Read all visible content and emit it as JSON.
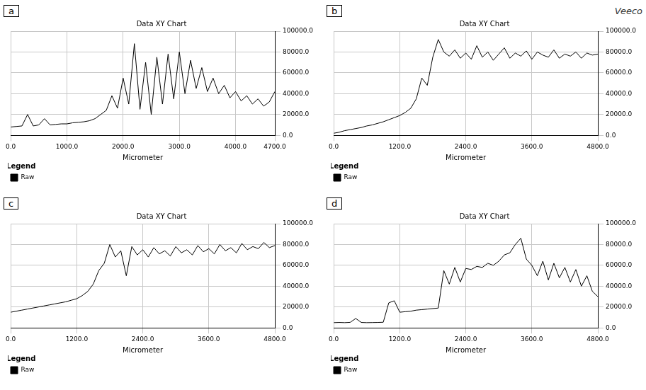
{
  "logo": "Veeco",
  "chart_data": [
    {
      "panel": "a",
      "type": "line",
      "title": "Data XY Chart",
      "x_label": "Micrometer",
      "legend_title": "Legend",
      "legend": "bottom",
      "grid": true,
      "x": [
        0,
        100,
        200,
        300,
        400,
        500,
        600,
        700,
        800,
        900,
        1000,
        1100,
        1200,
        1300,
        1400,
        1500,
        1600,
        1700,
        1800,
        1900,
        2000,
        2100,
        2200,
        2300,
        2400,
        2500,
        2600,
        2700,
        2800,
        2900,
        3000,
        3100,
        3200,
        3300,
        3400,
        3500,
        3600,
        3700,
        3800,
        3900,
        4000,
        4100,
        4200,
        4300,
        4400,
        4500,
        4600,
        4700
      ],
      "xlim": [
        0,
        4700
      ],
      "xticks": [
        {
          "value": 0,
          "label": "0.0"
        },
        {
          "value": 1000,
          "label": "1000.0"
        },
        {
          "value": 2000,
          "label": "2000.0"
        },
        {
          "value": 3000,
          "label": "3000.0"
        },
        {
          "value": 4000,
          "label": "4000.0"
        },
        {
          "value": 4700,
          "label": "4700.0"
        }
      ],
      "ylim": [
        0,
        100000
      ],
      "yticks": [
        {
          "value": 0,
          "label": "0.0"
        },
        {
          "value": 20000,
          "label": "20000.0"
        },
        {
          "value": 40000,
          "label": "40000.0"
        },
        {
          "value": 60000,
          "label": "60000.0"
        },
        {
          "value": 80000,
          "label": "80000.0"
        },
        {
          "value": 100000,
          "label": "100000.0"
        }
      ],
      "series": [
        {
          "name": "Raw",
          "color": "#000000",
          "values": [
            8000,
            8500,
            9000,
            20000,
            9000,
            10000,
            16000,
            10000,
            10500,
            11000,
            11000,
            12000,
            12500,
            13000,
            14000,
            16000,
            20000,
            24000,
            38000,
            26000,
            55000,
            30000,
            88000,
            25000,
            70000,
            20000,
            75000,
            30000,
            78000,
            35000,
            80000,
            40000,
            72000,
            45000,
            65000,
            42000,
            55000,
            40000,
            48000,
            36000,
            42000,
            33000,
            38000,
            30000,
            35000,
            28000,
            32000,
            42000
          ]
        }
      ]
    },
    {
      "panel": "b",
      "type": "line",
      "title": "Data XY Chart",
      "x_label": "Micrometer",
      "legend_title": "Legend",
      "legend": "bottom",
      "grid": true,
      "x": [
        0,
        100,
        200,
        300,
        400,
        500,
        600,
        700,
        800,
        900,
        1000,
        1100,
        1200,
        1300,
        1400,
        1500,
        1600,
        1700,
        1800,
        1900,
        2000,
        2100,
        2200,
        2300,
        2400,
        2500,
        2600,
        2700,
        2800,
        2900,
        3000,
        3100,
        3200,
        3300,
        3400,
        3500,
        3600,
        3700,
        3800,
        3900,
        4000,
        4100,
        4200,
        4300,
        4400,
        4500,
        4600,
        4700,
        4800
      ],
      "xlim": [
        0,
        4800
      ],
      "xticks": [
        {
          "value": 0,
          "label": "0.0"
        },
        {
          "value": 1200,
          "label": "1200.0"
        },
        {
          "value": 2400,
          "label": "2400.0"
        },
        {
          "value": 3600,
          "label": "3600.0"
        },
        {
          "value": 4800,
          "label": "4800.0"
        }
      ],
      "ylim": [
        0,
        100000
      ],
      "yticks": [
        {
          "value": 0,
          "label": "0.0"
        },
        {
          "value": 20000,
          "label": "20000.0"
        },
        {
          "value": 40000,
          "label": "40000.0"
        },
        {
          "value": 60000,
          "label": "60000.0"
        },
        {
          "value": 80000,
          "label": "80000.0"
        },
        {
          "value": 100000,
          "label": "100000.0"
        }
      ],
      "series": [
        {
          "name": "Raw",
          "color": "#000000",
          "values": [
            2000,
            3000,
            4500,
            5500,
            6500,
            7500,
            9000,
            10000,
            11500,
            13000,
            15000,
            17000,
            19000,
            22000,
            26000,
            35000,
            55000,
            48000,
            75000,
            92000,
            80000,
            76000,
            82000,
            74000,
            79000,
            73000,
            86000,
            75000,
            80000,
            72000,
            78000,
            84000,
            74000,
            79000,
            76000,
            81000,
            73000,
            80000,
            77000,
            75000,
            82000,
            74000,
            78000,
            76000,
            80000,
            74000,
            79000,
            77000,
            78000
          ]
        }
      ]
    },
    {
      "panel": "c",
      "type": "line",
      "title": "Data XY Chart",
      "x_label": "Micrometer",
      "legend_title": "Legend",
      "legend": "bottom",
      "grid": true,
      "x": [
        0,
        100,
        200,
        300,
        400,
        500,
        600,
        700,
        800,
        900,
        1000,
        1100,
        1200,
        1300,
        1400,
        1500,
        1600,
        1700,
        1800,
        1900,
        2000,
        2100,
        2200,
        2300,
        2400,
        2500,
        2600,
        2700,
        2800,
        2900,
        3000,
        3100,
        3200,
        3300,
        3400,
        3500,
        3600,
        3700,
        3800,
        3900,
        4000,
        4100,
        4200,
        4300,
        4400,
        4500,
        4600,
        4700,
        4800
      ],
      "xlim": [
        0,
        4800
      ],
      "xticks": [
        {
          "value": 0,
          "label": "0.0"
        },
        {
          "value": 1200,
          "label": "1200.0"
        },
        {
          "value": 2400,
          "label": "2400.0"
        },
        {
          "value": 3600,
          "label": "3600.0"
        },
        {
          "value": 4800,
          "label": "4800.0"
        }
      ],
      "ylim": [
        0,
        100000
      ],
      "yticks": [
        {
          "value": 0,
          "label": "0.0"
        },
        {
          "value": 20000,
          "label": "20000.0"
        },
        {
          "value": 40000,
          "label": "40000.0"
        },
        {
          "value": 60000,
          "label": "60000.0"
        },
        {
          "value": 80000,
          "label": "80000.0"
        },
        {
          "value": 100000,
          "label": "100000.0"
        }
      ],
      "series": [
        {
          "name": "Raw",
          "color": "#000000",
          "values": [
            15000,
            16000,
            17000,
            18000,
            19000,
            20000,
            21000,
            22000,
            23000,
            24000,
            25000,
            26500,
            28000,
            31000,
            35000,
            42000,
            55000,
            62000,
            80000,
            68000,
            74000,
            50000,
            78000,
            70000,
            75000,
            68000,
            77000,
            71000,
            74000,
            69000,
            78000,
            72000,
            75000,
            70000,
            79000,
            73000,
            76000,
            71000,
            80000,
            74000,
            77000,
            72000,
            81000,
            75000,
            78000,
            76000,
            82000,
            77000,
            79000
          ]
        }
      ]
    },
    {
      "panel": "d",
      "type": "line",
      "title": "Data XY Chart",
      "x_label": "Micrometer",
      "legend_title": "Legend",
      "legend": "bottom",
      "grid": true,
      "x": [
        0,
        100,
        200,
        300,
        400,
        500,
        600,
        700,
        800,
        900,
        1000,
        1100,
        1200,
        1300,
        1400,
        1500,
        1600,
        1700,
        1800,
        1900,
        2000,
        2100,
        2200,
        2300,
        2400,
        2500,
        2600,
        2700,
        2800,
        2900,
        3000,
        3100,
        3200,
        3300,
        3400,
        3500,
        3600,
        3700,
        3800,
        3900,
        4000,
        4100,
        4200,
        4300,
        4400,
        4500,
        4600,
        4700,
        4800
      ],
      "xlim": [
        0,
        4800
      ],
      "xticks": [
        {
          "value": 0,
          "label": "0.0"
        },
        {
          "value": 1200,
          "label": "1200.0"
        },
        {
          "value": 2400,
          "label": "2400.0"
        },
        {
          "value": 3600,
          "label": "3600.0"
        },
        {
          "value": 4800,
          "label": "4800.0"
        }
      ],
      "ylim": [
        0,
        100000
      ],
      "yticks": [
        {
          "value": 0,
          "label": "0.0"
        },
        {
          "value": 20000,
          "label": "20000.0"
        },
        {
          "value": 40000,
          "label": "40000.0"
        },
        {
          "value": 60000,
          "label": "60000.0"
        },
        {
          "value": 80000,
          "label": "80000.0"
        },
        {
          "value": 100000,
          "label": "100000.0"
        }
      ],
      "series": [
        {
          "name": "Raw",
          "color": "#000000",
          "values": [
            5000,
            5200,
            5000,
            5300,
            9000,
            5200,
            5000,
            5100,
            5200,
            5400,
            24000,
            26000,
            15000,
            15500,
            16000,
            17000,
            17500,
            18000,
            18500,
            19000,
            55000,
            42000,
            58000,
            44000,
            57000,
            56000,
            59000,
            58000,
            62000,
            60000,
            64000,
            70000,
            72000,
            80000,
            86000,
            66000,
            60000,
            50000,
            64000,
            46000,
            62000,
            48000,
            58000,
            44000,
            56000,
            40000,
            50000,
            35000,
            30000
          ]
        }
      ]
    }
  ]
}
